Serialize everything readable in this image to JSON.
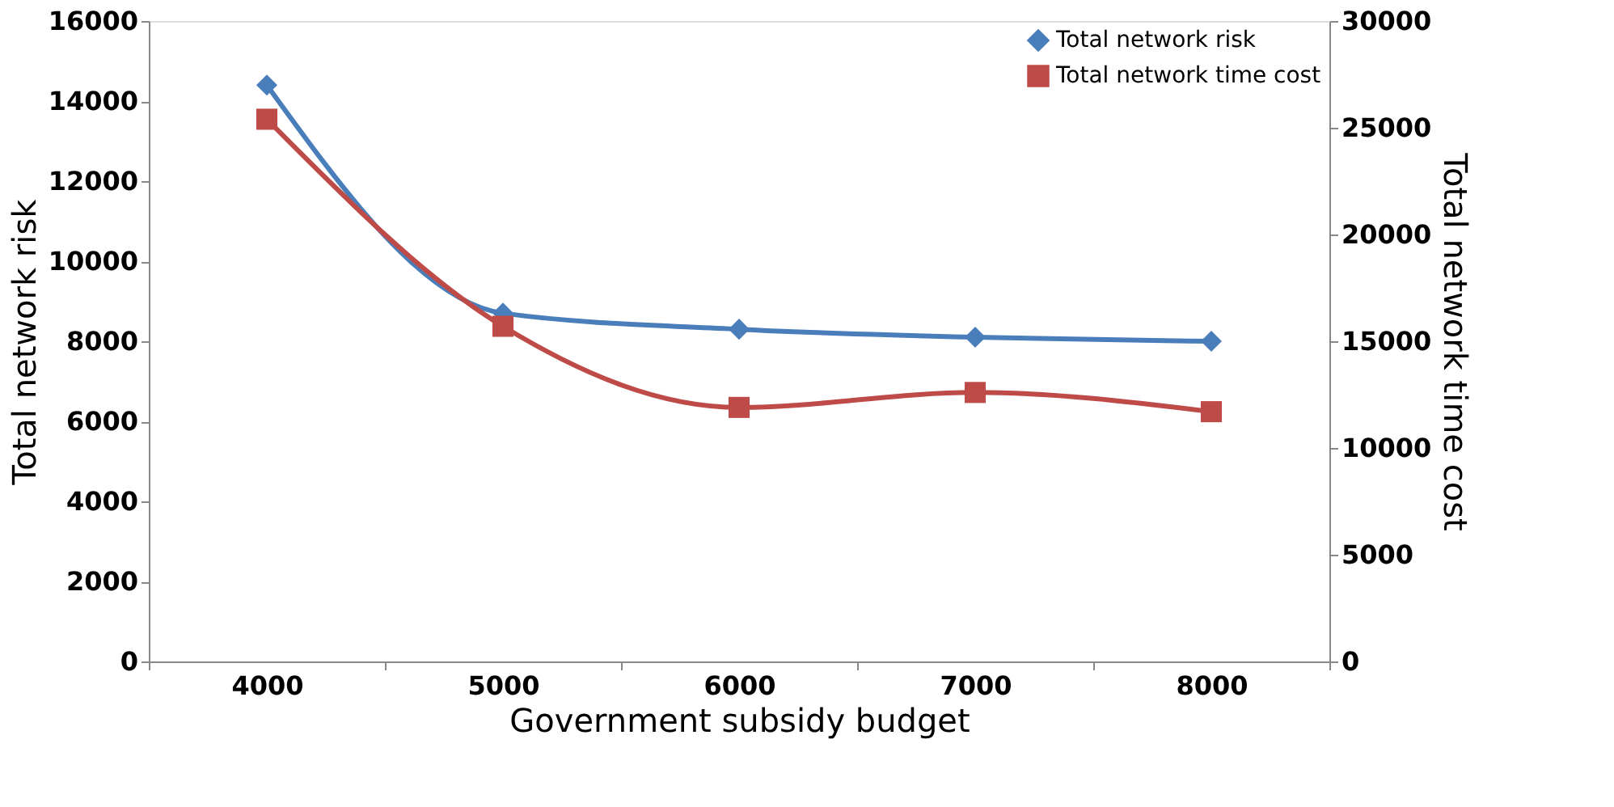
{
  "chart_data": {
    "type": "line",
    "xlabel": "Government subsidy budget",
    "ylabel": "Total network risk",
    "y2label": "Total network time cost",
    "categories": [
      "4000",
      "5000",
      "6000",
      "7000",
      "8000"
    ],
    "series": [
      {
        "name": "Total network risk",
        "color": "#4a7ebb",
        "marker": "diamond",
        "values": [
          14400,
          8700,
          8300,
          8100,
          8000
        ]
      },
      {
        "name": "Total network time cost",
        "color": "#be4b48",
        "marker": "square",
        "axis": "y2",
        "values": [
          25400,
          15700,
          11900,
          12600,
          11700
        ]
      }
    ],
    "ylim": [
      0,
      16000
    ],
    "yticks": [
      0,
      2000,
      4000,
      6000,
      8000,
      10000,
      12000,
      14000,
      16000
    ],
    "y2lim": [
      0,
      30000
    ],
    "y2ticks": [
      0,
      5000,
      10000,
      15000,
      20000,
      25000,
      30000
    ],
    "legend": "top right",
    "grid": false
  }
}
